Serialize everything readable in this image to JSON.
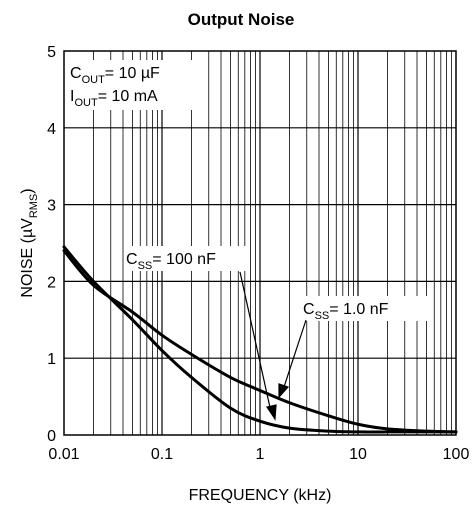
{
  "chart_data": {
    "type": "line",
    "title": "Output Noise",
    "xlabel": "FREQUENCY (kHz)",
    "ylabel": {
      "main": "NOISE (µV",
      "sub": "RMS",
      "close": ")"
    },
    "x_scale": "log",
    "xlim": [
      0.01,
      100
    ],
    "ylim": [
      0,
      5
    ],
    "x_ticks": [
      0.01,
      0.1,
      1,
      10,
      100
    ],
    "x_tick_labels": [
      "0.01",
      "0.1",
      "1",
      "10",
      "100"
    ],
    "y_ticks": [
      0,
      1,
      2,
      3,
      4,
      5
    ],
    "y_tick_labels": [
      "0",
      "1",
      "2",
      "3",
      "4",
      "5"
    ],
    "grid": {
      "x": "log-decades-with-minor",
      "y": "major"
    },
    "conditions": [
      {
        "main": "C",
        "sub": "OUT",
        "rest": "= 10 µF"
      },
      {
        "main": "I",
        "sub": "OUT",
        "rest": "= 10 mA"
      }
    ],
    "series": [
      {
        "name": "C_SS = 100 nF",
        "label": {
          "main": "C",
          "sub": "SS",
          "rest": "= 100 nF"
        },
        "x": [
          0.01,
          0.02,
          0.05,
          0.1,
          0.2,
          0.5,
          1,
          2,
          5,
          10,
          20,
          50,
          100
        ],
        "y": [
          2.45,
          2.0,
          1.5,
          1.1,
          0.75,
          0.35,
          0.18,
          0.09,
          0.05,
          0.04,
          0.04,
          0.04,
          0.04
        ]
      },
      {
        "name": "C_SS = 1.0 nF",
        "label": {
          "main": "C",
          "sub": "SS",
          "rest": "= 1.0 nF"
        },
        "x": [
          0.01,
          0.02,
          0.05,
          0.1,
          0.2,
          0.5,
          1,
          2,
          5,
          10,
          20,
          50,
          100
        ],
        "y": [
          2.4,
          1.95,
          1.6,
          1.3,
          1.05,
          0.75,
          0.58,
          0.42,
          0.25,
          0.14,
          0.08,
          0.05,
          0.04
        ]
      }
    ]
  }
}
